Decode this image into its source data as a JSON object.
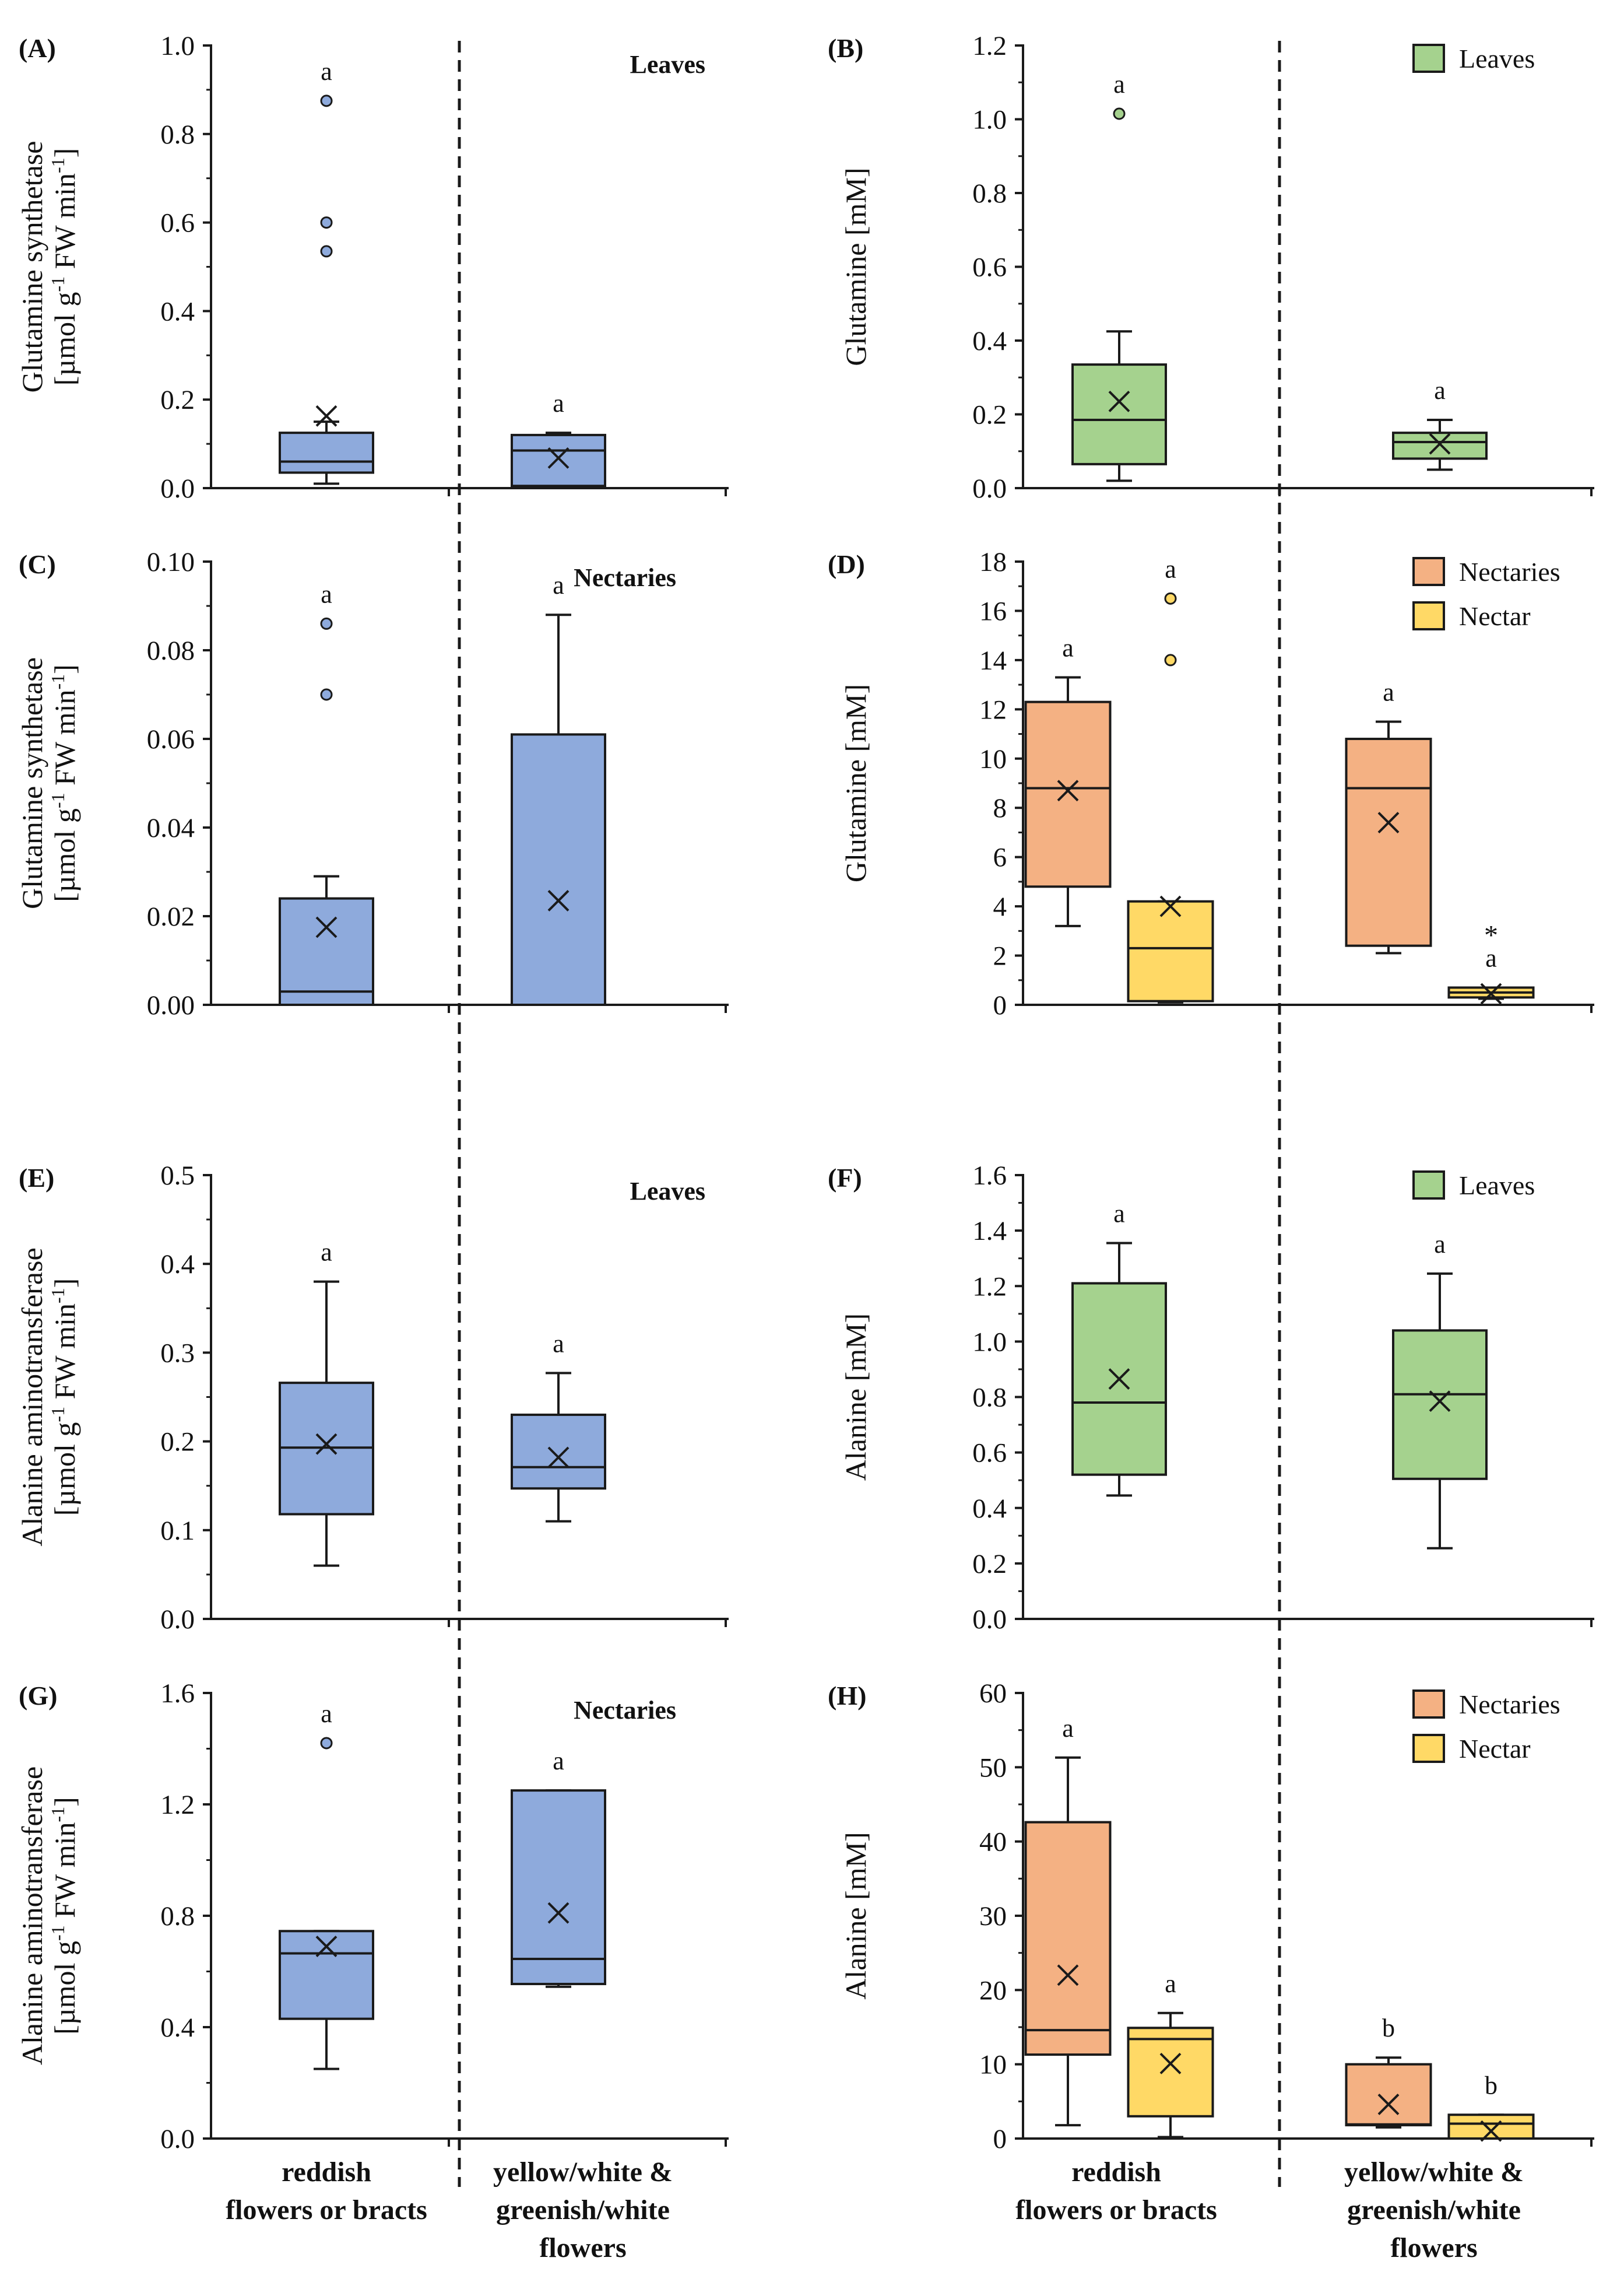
{
  "figure": {
    "group_labels": [
      {
        "line1": "reddish",
        "line2": "flowers or bracts",
        "line3": ""
      },
      {
        "line1": "yellow/white &",
        "line2": "greenish/white",
        "line3": "flowers"
      }
    ],
    "colors": {
      "blue": "#8eaadc",
      "green": "#a5d28e",
      "orange": "#f4b183",
      "yellow": "#ffd966",
      "outline": "#1a1a1a"
    }
  },
  "chart_data": [
    {
      "id": "A",
      "type": "box",
      "panel_label": "(A)",
      "ylabel_line1": "Glutamine synthetase",
      "ylabel_line2_parts": [
        "[µmol g",
        "-1",
        " FW min",
        "-1",
        "]"
      ],
      "ylim": [
        0,
        1.0
      ],
      "yticks": [
        "0.0",
        "0.2",
        "0.4",
        "0.6",
        "0.8",
        "1.0"
      ],
      "legend": {
        "style": "bold",
        "entries": [
          {
            "label": "Leaves",
            "color": ""
          }
        ]
      },
      "series": [
        {
          "group": 0,
          "slot": "single",
          "color": "#8eaadc",
          "whisker_low": 0.01,
          "q1": 0.035,
          "median": 0.06,
          "q3": 0.125,
          "whisker_high": 0.15,
          "mean": 0.163,
          "outliers": [
            0.535,
            0.6,
            0.875
          ],
          "letter": "a",
          "star": false
        },
        {
          "group": 1,
          "slot": "single",
          "color": "#8eaadc",
          "whisker_low": 0.005,
          "q1": 0.005,
          "median": 0.085,
          "q3": 0.12,
          "whisker_high": 0.125,
          "mean": 0.068,
          "outliers": [],
          "letter": "a",
          "star": false
        }
      ]
    },
    {
      "id": "B",
      "type": "box",
      "panel_label": "(B)",
      "ylabel_line1": "Glutamine [mM]",
      "ylim": [
        0,
        1.2
      ],
      "yticks": [
        "0.0",
        "0.2",
        "0.4",
        "0.6",
        "0.8",
        "1.0",
        "1.2"
      ],
      "legend": {
        "style": "box",
        "entries": [
          {
            "label": "Leaves",
            "color": "#a5d28e"
          }
        ]
      },
      "series": [
        {
          "group": 0,
          "slot": "single",
          "color": "#a5d28e",
          "whisker_low": 0.02,
          "q1": 0.065,
          "median": 0.185,
          "q3": 0.335,
          "whisker_high": 0.425,
          "mean": 0.235,
          "outliers": [
            1.015
          ],
          "letter": "a",
          "star": false
        },
        {
          "group": 1,
          "slot": "single",
          "color": "#a5d28e",
          "whisker_low": 0.05,
          "q1": 0.08,
          "median": 0.125,
          "q3": 0.15,
          "whisker_high": 0.185,
          "mean": 0.12,
          "outliers": [],
          "letter": "a",
          "star": false
        }
      ]
    },
    {
      "id": "C",
      "type": "box",
      "panel_label": "(C)",
      "ylabel_line1": "Glutamine synthetase",
      "ylabel_line2_parts": [
        "[µmol g",
        "-1",
        " FW min",
        "-1",
        "]"
      ],
      "ylim": [
        0,
        0.1
      ],
      "yticks": [
        "0.00",
        "0.02",
        "0.04",
        "0.06",
        "0.08",
        "0.10"
      ],
      "legend": {
        "style": "bold",
        "entries": [
          {
            "label": "Nectaries",
            "color": ""
          }
        ]
      },
      "series": [
        {
          "group": 0,
          "slot": "single",
          "color": "#8eaadc",
          "whisker_low": 0.0,
          "q1": 0.0,
          "median": 0.003,
          "q3": 0.024,
          "whisker_high": 0.029,
          "mean": 0.0175,
          "outliers": [
            0.07,
            0.086
          ],
          "letter": "a",
          "star": false
        },
        {
          "group": 1,
          "slot": "single",
          "color": "#8eaadc",
          "whisker_low": 0.0,
          "q1": 0.0,
          "median": 0.0,
          "q3": 0.061,
          "whisker_high": 0.088,
          "mean": 0.0235,
          "outliers": [],
          "letter": "a",
          "star": false
        }
      ]
    },
    {
      "id": "D",
      "type": "box",
      "panel_label": "(D)",
      "ylabel_line1": "Glutamine [mM]",
      "ylim": [
        0,
        18
      ],
      "yticks": [
        "0",
        "2",
        "4",
        "6",
        "8",
        "10",
        "12",
        "14",
        "16",
        "18"
      ],
      "legend": {
        "style": "box",
        "entries": [
          {
            "label": "Nectaries",
            "color": "#f4b183"
          },
          {
            "label": "Nectar",
            "color": "#ffd966"
          }
        ]
      },
      "series": [
        {
          "group": 0,
          "slot": "left",
          "color": "#f4b183",
          "whisker_low": 3.2,
          "q1": 4.8,
          "median": 8.8,
          "q3": 12.3,
          "whisker_high": 13.3,
          "mean": 8.7,
          "outliers": [],
          "letter": "a",
          "star": false
        },
        {
          "group": 0,
          "slot": "right",
          "color": "#ffd966",
          "whisker_low": 0.1,
          "q1": 0.15,
          "median": 2.3,
          "q3": 4.2,
          "whisker_high": 4.2,
          "mean": 4.0,
          "outliers": [
            14.0,
            16.5
          ],
          "letter": "a",
          "star": false
        },
        {
          "group": 1,
          "slot": "left",
          "color": "#f4b183",
          "whisker_low": 2.1,
          "q1": 2.4,
          "median": 8.8,
          "q3": 10.8,
          "whisker_high": 11.5,
          "mean": 7.4,
          "outliers": [],
          "letter": "a",
          "star": false
        },
        {
          "group": 1,
          "slot": "right",
          "color": "#ffd966",
          "whisker_low": 0.25,
          "q1": 0.3,
          "median": 0.5,
          "q3": 0.7,
          "whisker_high": 0.7,
          "mean": 0.45,
          "outliers": [],
          "letter": "a",
          "star": true
        }
      ]
    },
    {
      "id": "E",
      "type": "box",
      "panel_label": "(E)",
      "ylabel_line1": "Alanine aminotransferase",
      "ylabel_line2_parts": [
        "[µmol g",
        "-1",
        " FW min",
        "-1",
        "]"
      ],
      "ylim": [
        0,
        0.5
      ],
      "yticks": [
        "0.0",
        "0.1",
        "0.2",
        "0.3",
        "0.4",
        "0.5"
      ],
      "legend": {
        "style": "bold",
        "entries": [
          {
            "label": "Leaves",
            "color": ""
          }
        ]
      },
      "series": [
        {
          "group": 0,
          "slot": "single",
          "color": "#8eaadc",
          "whisker_low": 0.06,
          "q1": 0.118,
          "median": 0.193,
          "q3": 0.266,
          "whisker_high": 0.38,
          "mean": 0.197,
          "outliers": [],
          "letter": "a",
          "star": false
        },
        {
          "group": 1,
          "slot": "single",
          "color": "#8eaadc",
          "whisker_low": 0.11,
          "q1": 0.147,
          "median": 0.171,
          "q3": 0.23,
          "whisker_high": 0.277,
          "mean": 0.182,
          "outliers": [],
          "letter": "a",
          "star": false
        }
      ]
    },
    {
      "id": "F",
      "type": "box",
      "panel_label": "(F)",
      "ylabel_line1": "Alanine [mM]",
      "ylim": [
        0,
        1.6
      ],
      "yticks": [
        "0.0",
        "0.2",
        "0.4",
        "0.6",
        "0.8",
        "1.0",
        "1.2",
        "1.4",
        "1.6"
      ],
      "legend": {
        "style": "box",
        "entries": [
          {
            "label": "Leaves",
            "color": "#a5d28e"
          }
        ]
      },
      "series": [
        {
          "group": 0,
          "slot": "single",
          "color": "#a5d28e",
          "whisker_low": 0.445,
          "q1": 0.52,
          "median": 0.78,
          "q3": 1.21,
          "whisker_high": 1.355,
          "mean": 0.865,
          "outliers": [],
          "letter": "a",
          "star": false
        },
        {
          "group": 1,
          "slot": "single",
          "color": "#a5d28e",
          "whisker_low": 0.255,
          "q1": 0.505,
          "median": 0.81,
          "q3": 1.04,
          "whisker_high": 1.245,
          "mean": 0.785,
          "outliers": [],
          "letter": "a",
          "star": false
        }
      ]
    },
    {
      "id": "G",
      "type": "box",
      "panel_label": "(G)",
      "ylabel_line1": "Alanine aminotransferase",
      "ylabel_line2_parts": [
        "[µmol g",
        "-1",
        " FW min",
        "-1",
        "]"
      ],
      "ylim": [
        0,
        1.6
      ],
      "yticks": [
        "0.0",
        "0.4",
        "0.8",
        "1.2",
        "1.6"
      ],
      "legend": {
        "style": "bold",
        "entries": [
          {
            "label": "Nectaries",
            "color": ""
          }
        ]
      },
      "series": [
        {
          "group": 0,
          "slot": "single",
          "color": "#8eaadc",
          "whisker_low": 0.25,
          "q1": 0.43,
          "median": 0.665,
          "q3": 0.745,
          "whisker_high": 0.745,
          "mean": 0.69,
          "outliers": [
            1.42
          ],
          "letter": "a",
          "star": false
        },
        {
          "group": 1,
          "slot": "single",
          "color": "#8eaadc",
          "whisker_low": 0.545,
          "q1": 0.555,
          "median": 0.645,
          "q3": 1.25,
          "whisker_high": 1.25,
          "mean": 0.81,
          "outliers": [],
          "letter": "a",
          "star": false
        }
      ]
    },
    {
      "id": "H",
      "type": "box",
      "panel_label": "(H)",
      "ylabel_line1": "Alanine [mM]",
      "ylim": [
        0,
        60
      ],
      "yticks": [
        "0",
        "10",
        "20",
        "30",
        "40",
        "50",
        "60"
      ],
      "legend": {
        "style": "box",
        "entries": [
          {
            "label": "Nectaries",
            "color": "#f4b183"
          },
          {
            "label": "Nectar",
            "color": "#ffd966"
          }
        ]
      },
      "series": [
        {
          "group": 0,
          "slot": "left",
          "color": "#f4b183",
          "whisker_low": 1.8,
          "q1": 11.3,
          "median": 14.6,
          "q3": 42.6,
          "whisker_high": 51.3,
          "mean": 22.0,
          "outliers": [],
          "letter": "a",
          "star": false
        },
        {
          "group": 0,
          "slot": "right",
          "color": "#ffd966",
          "whisker_low": 0.2,
          "q1": 3.0,
          "median": 13.4,
          "q3": 14.9,
          "whisker_high": 16.9,
          "mean": 10.1,
          "outliers": [],
          "letter": "a",
          "star": false
        },
        {
          "group": 1,
          "slot": "left",
          "color": "#f4b183",
          "whisker_low": 1.5,
          "q1": 1.8,
          "median": 1.9,
          "q3": 10.0,
          "whisker_high": 10.9,
          "mean": 4.6,
          "outliers": [],
          "letter": "b",
          "star": false
        },
        {
          "group": 1,
          "slot": "right",
          "color": "#ffd966",
          "whisker_low": 0.0,
          "q1": 0.0,
          "median": 2.0,
          "q3": 3.2,
          "whisker_high": 3.2,
          "mean": 1.0,
          "outliers": [],
          "letter": "b",
          "star": false
        }
      ]
    }
  ]
}
